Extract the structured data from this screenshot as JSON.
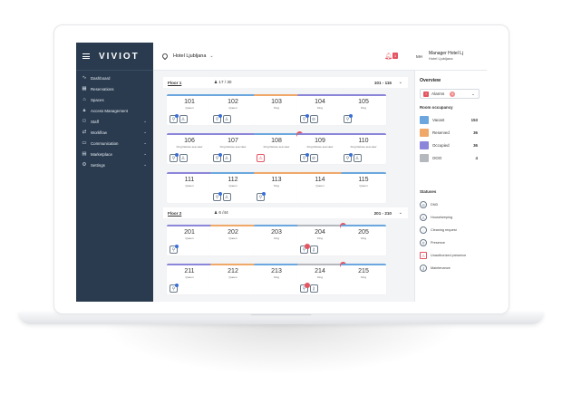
{
  "app": {
    "logo": "VIVIOT",
    "hotel_name": "Hotel Ljubljana",
    "notification_count": "1",
    "user_initials": "MH",
    "user_name": "Manager Hotel Lj",
    "user_hotel": "Hotel Ljubljana"
  },
  "sidebar": {
    "items": [
      {
        "label": "Dashboard",
        "icon": "pulse-icon",
        "expandable": false
      },
      {
        "label": "Reservations",
        "icon": "calendar-icon",
        "expandable": false
      },
      {
        "label": "Spaces",
        "icon": "home-icon",
        "expandable": false
      },
      {
        "label": "Access Management",
        "icon": "lock-icon",
        "expandable": false
      },
      {
        "label": "Staff",
        "icon": "users-icon",
        "expandable": true
      },
      {
        "label": "Workflow",
        "icon": "workflow-icon",
        "expandable": true
      },
      {
        "label": "Communication",
        "icon": "chat-icon",
        "expandable": true
      },
      {
        "label": "Marketplace",
        "icon": "store-icon",
        "expandable": true
      },
      {
        "label": "Settings",
        "icon": "gear-icon",
        "expandable": true
      }
    ]
  },
  "floors": [
    {
      "name": "Floor 1",
      "occupancy": "17 / 30",
      "range": "101 - 115",
      "rooms": [
        {
          "num": "101",
          "type": "Queen",
          "color": "#6ba7de",
          "icons": [
            "person",
            "person-outline"
          ],
          "dot": true
        },
        {
          "num": "102",
          "type": "Queen",
          "color": "#6ba7de",
          "icons": [
            "person",
            "lock"
          ],
          "dot": true
        },
        {
          "num": "103",
          "type": "King",
          "color": "#f0a868",
          "icons": [],
          "dot": false
        },
        {
          "num": "104",
          "type": "King",
          "color": "#8b86d9",
          "icons": [
            "person",
            "dnd"
          ],
          "dot": true
        },
        {
          "num": "105",
          "type": "King",
          "color": "#8b86d9",
          "icons": [
            "person"
          ],
          "dot": true
        },
        {
          "num": "106",
          "type": "King Deluxe sea view",
          "color": "#8b86d9",
          "icons": [
            "person",
            "lock"
          ],
          "dot": true
        },
        {
          "num": "107",
          "type": "King Deluxe sea view",
          "color": "#8b86d9",
          "icons": [
            "person",
            "lock"
          ],
          "dot": true
        },
        {
          "num": "108",
          "type": "King Deluxe sea view",
          "color": "#6ba7de",
          "icons": [
            "alert"
          ],
          "dot": false,
          "alarm": true
        },
        {
          "num": "109",
          "type": "King Deluxe sea view",
          "color": "#8b86d9",
          "icons": [
            "person",
            "dnd"
          ],
          "dot": true
        },
        {
          "num": "110",
          "type": "King Deluxe sea view",
          "color": "#8b86d9",
          "icons": [
            "person",
            "lock"
          ],
          "dot": true
        },
        {
          "num": "111",
          "type": "Queen",
          "color": "#8b86d9",
          "icons": [],
          "dot": false
        },
        {
          "num": "112",
          "type": "Queen",
          "color": "#6ba7de",
          "icons": [
            "person",
            "lock"
          ],
          "dot": true
        },
        {
          "num": "113",
          "type": "King",
          "color": "#f0a868",
          "icons": [
            "person"
          ],
          "dot": true
        },
        {
          "num": "114",
          "type": "Queen",
          "color": "#f0a868",
          "icons": [],
          "dot": false
        },
        {
          "num": "115",
          "type": "Queen",
          "color": "#6ba7de",
          "icons": [],
          "dot": false
        }
      ]
    },
    {
      "name": "Floor 2",
      "occupancy": "6 /44",
      "range": "201 - 210",
      "rooms": [
        {
          "num": "201",
          "type": "Queen",
          "color": "#8b86d9",
          "icons": [
            "person"
          ],
          "dot": true
        },
        {
          "num": "202",
          "type": "Queen",
          "color": "#f0a868",
          "icons": [],
          "dot": false
        },
        {
          "num": "203",
          "type": "King",
          "color": "#6ba7de",
          "icons": [],
          "dot": false
        },
        {
          "num": "204",
          "type": "King",
          "color": "#b5b8bd",
          "icons": [
            "person",
            "wrench"
          ],
          "dot": true,
          "alarm": true
        },
        {
          "num": "205",
          "type": "King",
          "color": "#6ba7de",
          "icons": [],
          "dot": false
        },
        {
          "num": "211",
          "type": "Queen",
          "color": "#8b86d9",
          "icons": [
            "person"
          ],
          "dot": true
        },
        {
          "num": "212",
          "type": "Queen",
          "color": "#f0a868",
          "icons": [],
          "dot": false
        },
        {
          "num": "213",
          "type": "King",
          "color": "#6ba7de",
          "icons": [],
          "dot": false
        },
        {
          "num": "214",
          "type": "King",
          "color": "#b5b8bd",
          "icons": [
            "person",
            "wrench"
          ],
          "dot": true,
          "alarm": true
        },
        {
          "num": "215",
          "type": "King",
          "color": "#6ba7de",
          "icons": [],
          "dot": false
        }
      ]
    }
  ],
  "overview": {
    "title": "Overview",
    "alarms_label": "Alarms",
    "alarms_count": "6",
    "occupancy_title": "Room occupancy",
    "occupancy": [
      {
        "label": "Vacant",
        "count": "153",
        "color": "#6ba7de"
      },
      {
        "label": "Reserved",
        "count": "36",
        "color": "#f0a868"
      },
      {
        "label": "Occupied",
        "count": "36",
        "color": "#8b86d9"
      },
      {
        "label": "OOO",
        "count": "4",
        "color": "#b5b8bd"
      }
    ],
    "statuses_title": "Statuses",
    "statuses": [
      {
        "label": "DND",
        "icon": "dnd-icon"
      },
      {
        "label": "Housekeeping",
        "icon": "housekeeping-icon"
      },
      {
        "label": "Cleaning request",
        "icon": "cleaning-icon"
      },
      {
        "label": "Presence",
        "icon": "presence-icon"
      },
      {
        "label": "Unauthorized presence",
        "icon": "warning-icon"
      },
      {
        "label": "Maintenance",
        "icon": "wrench-icon"
      }
    ]
  }
}
